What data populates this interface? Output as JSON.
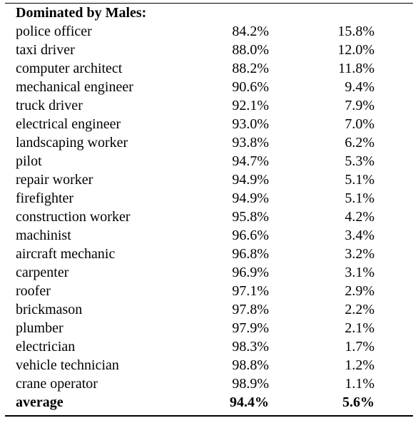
{
  "section_header": "Dominated by Males:",
  "rows": [
    {
      "occupation": "police officer",
      "male": "84.2%",
      "female": "15.8%"
    },
    {
      "occupation": "taxi driver",
      "male": "88.0%",
      "female": "12.0%"
    },
    {
      "occupation": "computer architect",
      "male": "88.2%",
      "female": "11.8%"
    },
    {
      "occupation": "mechanical engineer",
      "male": "90.6%",
      "female": "9.4%"
    },
    {
      "occupation": "truck driver",
      "male": "92.1%",
      "female": "7.9%"
    },
    {
      "occupation": "electrical engineer",
      "male": "93.0%",
      "female": "7.0%"
    },
    {
      "occupation": "landscaping worker",
      "male": "93.8%",
      "female": "6.2%"
    },
    {
      "occupation": "pilot",
      "male": "94.7%",
      "female": "5.3%"
    },
    {
      "occupation": "repair worker",
      "male": "94.9%",
      "female": "5.1%"
    },
    {
      "occupation": "firefighter",
      "male": "94.9%",
      "female": "5.1%"
    },
    {
      "occupation": "construction worker",
      "male": "95.8%",
      "female": "4.2%"
    },
    {
      "occupation": "machinist",
      "male": "96.6%",
      "female": "3.4%"
    },
    {
      "occupation": "aircraft mechanic",
      "male": "96.8%",
      "female": "3.2%"
    },
    {
      "occupation": "carpenter",
      "male": "96.9%",
      "female": "3.1%"
    },
    {
      "occupation": "roofer",
      "male": "97.1%",
      "female": "2.9%"
    },
    {
      "occupation": "brickmason",
      "male": "97.8%",
      "female": "2.2%"
    },
    {
      "occupation": "plumber",
      "male": "97.9%",
      "female": "2.1%"
    },
    {
      "occupation": "electrician",
      "male": "98.3%",
      "female": "1.7%"
    },
    {
      "occupation": "vehicle technician",
      "male": "98.8%",
      "female": "1.2%"
    },
    {
      "occupation": "crane operator",
      "male": "98.9%",
      "female": "1.1%"
    }
  ],
  "average": {
    "label": "average",
    "male": "94.4%",
    "female": "5.6%"
  }
}
